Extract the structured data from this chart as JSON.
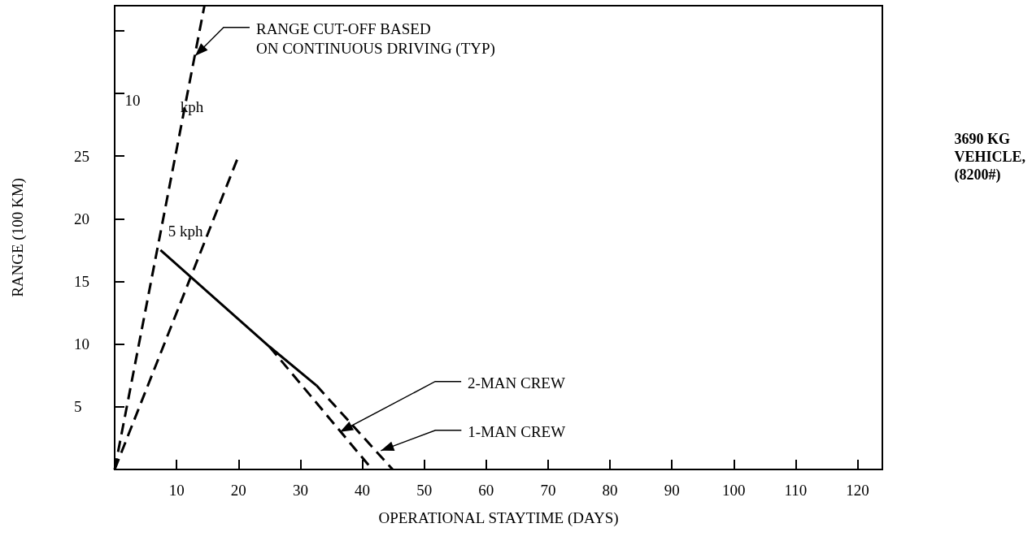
{
  "chart_data": {
    "type": "line",
    "xlabel": "OPERATIONAL STAYTIME (DAYS)",
    "ylabel": "RANGE (100 KM)",
    "xlim": [
      0,
      124
    ],
    "xticks": [
      10,
      20,
      30,
      40,
      50,
      60,
      70,
      80,
      90,
      100,
      110,
      120
    ],
    "ylim": [
      0,
      37
    ],
    "yticks": [
      5,
      10,
      15,
      20,
      25,
      {
        "value": 30,
        "label": null
      },
      {
        "value": 35,
        "label": null
      }
    ],
    "grid": false,
    "marker": "none",
    "series": [
      {
        "color": "#000000",
        "line_style": "dashed",
        "x": [
          0,
          14.5
        ],
        "values": [
          0,
          37
        ]
      },
      {
        "color": "#000000",
        "line_style": "dashed",
        "x": [
          0,
          20
        ],
        "values": [
          0,
          25
        ]
      },
      {
        "color": "#000000",
        "line_style": "solid",
        "x": [
          7.4,
          25,
          32.6
        ],
        "values": [
          17.5,
          9.8,
          6.7
        ]
      },
      {
        "color": "#000000",
        "line_style": "dashed",
        "x": [
          25,
          41.6
        ],
        "values": [
          9.8,
          0
        ]
      },
      {
        "color": "#000000",
        "line_style": "dashed",
        "x": [
          32.6,
          44.9
        ],
        "values": [
          6.7,
          0
        ]
      }
    ],
    "annotations": [
      "10",
      "kph",
      "5 kph",
      {
        "text": "RANGE CUT-OFF BASED\nON CONTINUOUS DRIVING (TYP)",
        "x": 13,
        "y": 33
      },
      {
        "text": "2-MAN CREW",
        "x": 36.4,
        "y": 3
      },
      {
        "text": "1-MAN CREW",
        "x": 43,
        "y": 1.5
      },
      "3690 KG\nVEHICLE,\n(8200#)"
    ]
  }
}
